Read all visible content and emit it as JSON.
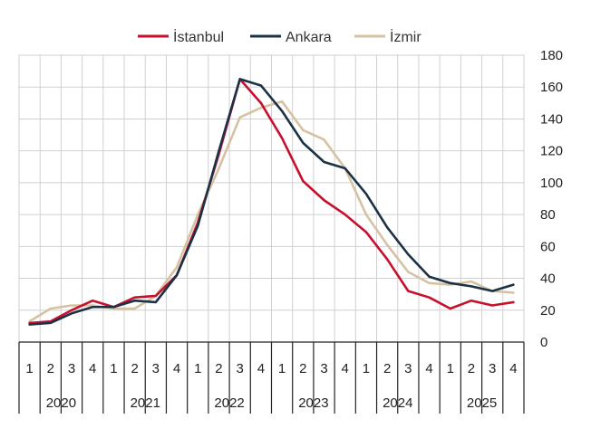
{
  "chart_data": {
    "type": "line",
    "title": "",
    "xlabel": "",
    "ylabel": "",
    "ylim": [
      0,
      180
    ],
    "yticks": [
      0,
      20,
      40,
      60,
      80,
      100,
      120,
      140,
      160,
      180
    ],
    "y_axis_side": "right",
    "grid": true,
    "legend_position": "top-center",
    "years": [
      "2020",
      "2021",
      "2022",
      "2023",
      "2024",
      "2025"
    ],
    "quarters": [
      "1",
      "2",
      "3",
      "4"
    ],
    "series": [
      {
        "name": "İstanbul",
        "color": "#c8102e",
        "values": [
          12,
          13,
          20,
          26,
          22,
          28,
          29,
          42,
          75,
          118,
          165,
          150,
          128,
          101,
          89,
          80,
          69,
          52,
          32,
          28,
          21,
          26,
          23,
          25
        ]
      },
      {
        "name": "Ankara",
        "color": "#1b3146",
        "values": [
          11,
          12,
          18,
          22,
          22,
          26,
          25,
          42,
          73,
          120,
          165,
          161,
          145,
          125,
          113,
          109,
          93,
          72,
          55,
          41,
          37,
          35,
          32,
          36
        ]
      },
      {
        "name": "İzmir",
        "color": "#d6c2a2",
        "values": [
          13,
          21,
          23,
          23,
          21,
          21,
          29,
          47,
          80,
          109,
          141,
          147,
          151,
          133,
          127,
          109,
          80,
          61,
          44,
          37,
          36,
          38,
          32,
          31
        ]
      }
    ]
  }
}
